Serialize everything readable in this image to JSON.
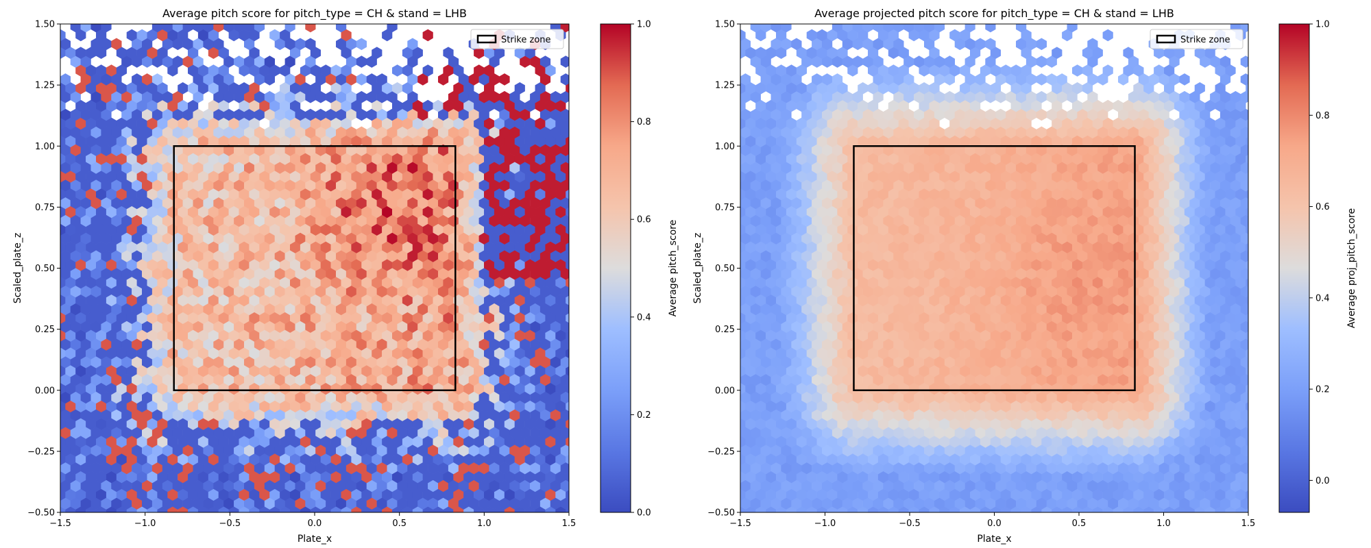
{
  "chart_data": [
    {
      "type": "heatmap",
      "subtype": "hexbin",
      "title": "Average pitch score for pitch_type = CH & stand = LHB",
      "xlabel": "Plate_x",
      "ylabel": "Scaled_plate_z",
      "colorbar_label": "Average pitch_score",
      "colormap": "coolwarm",
      "xlim": [
        -1.5,
        1.5
      ],
      "ylim": [
        -0.5,
        1.5
      ],
      "clim": [
        0.0,
        1.0
      ],
      "xticks": [
        "−1.5",
        "−1.0",
        "−0.5",
        "0.0",
        "0.5",
        "1.0",
        "1.5"
      ],
      "yticks": [
        "−0.50",
        "−0.25",
        "0.00",
        "0.25",
        "0.50",
        "0.75",
        "1.00",
        "1.25",
        "1.50"
      ],
      "colorbar_ticks": [
        "0.0",
        "0.2",
        "0.4",
        "0.6",
        "0.8",
        "1.0"
      ],
      "colorbar_tick_values": [
        0.0,
        0.2,
        0.4,
        0.6,
        0.8,
        1.0
      ],
      "legend": {
        "label": "Strike zone",
        "placement": "upper-right"
      },
      "strike_zone": {
        "x": [
          -0.83,
          0.83
        ],
        "z": [
          0.0,
          1.0
        ]
      },
      "field_pattern": "noisy",
      "field_model": {
        "outside": 0.15,
        "inside_left": 0.63,
        "inside_right": 0.74,
        "hot_spot": {
          "x": 0.45,
          "z": 0.75,
          "value": 0.95
        },
        "outfield_red_region": "upper-right (x > 0.7, z > 0.7)"
      }
    },
    {
      "type": "heatmap",
      "subtype": "hexbin",
      "title": "Average projected pitch score for pitch_type = CH & stand = LHB",
      "xlabel": "Plate_x",
      "ylabel": "Scaled_plate_z",
      "colorbar_label": "Average proj_pitch_score",
      "colormap": "coolwarm",
      "xlim": [
        -1.5,
        1.5
      ],
      "ylim": [
        -0.5,
        1.5
      ],
      "clim": [
        -0.07,
        1.0
      ],
      "xticks": [
        "−1.5",
        "−1.0",
        "−0.5",
        "0.0",
        "0.5",
        "1.0",
        "1.5"
      ],
      "yticks": [
        "−0.50",
        "−0.25",
        "0.00",
        "0.25",
        "0.50",
        "0.75",
        "1.00",
        "1.25",
        "1.50"
      ],
      "colorbar_ticks": [
        "0.0",
        "0.2",
        "0.4",
        "0.6",
        "0.8",
        "1.0"
      ],
      "colorbar_tick_values": [
        0.0,
        0.2,
        0.4,
        0.6,
        0.8,
        1.0
      ],
      "legend": {
        "label": "Strike zone",
        "placement": "upper-right"
      },
      "strike_zone": {
        "x": [
          -0.83,
          0.83
        ],
        "z": [
          0.0,
          1.0
        ]
      },
      "field_pattern": "smooth",
      "field_model": {
        "outside": 0.2,
        "inside_left": 0.64,
        "inside_right": 0.74,
        "hot_spot": {
          "x": 0.5,
          "z": 0.45,
          "value": 0.78
        }
      }
    }
  ]
}
